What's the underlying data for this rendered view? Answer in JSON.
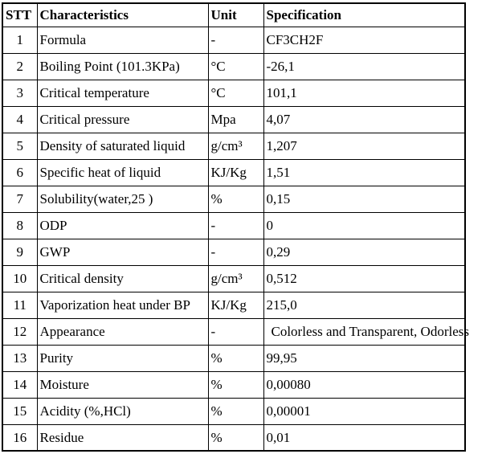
{
  "table": {
    "headers": {
      "stt": "STT",
      "characteristics": "Characteristics",
      "unit": "Unit",
      "specification": "Specification"
    },
    "rows": [
      {
        "stt": "1",
        "characteristics": "Formula",
        "unit": "-",
        "specification": "CF3CH2F"
      },
      {
        "stt": "2",
        "characteristics": "Boiling Point (101.3KPa)",
        "unit": "°C",
        "specification": "-26,1"
      },
      {
        "stt": "3",
        "characteristics": "Critical temperature",
        "unit": "°C",
        "specification": "101,1"
      },
      {
        "stt": "4",
        "characteristics": "Critical pressure",
        "unit": "Mpa",
        "specification": "4,07"
      },
      {
        "stt": "5",
        "characteristics": "Density of saturated liquid",
        "unit": "g/cm³",
        "specification": "1,207"
      },
      {
        "stt": "6",
        "characteristics": "Specific heat of liquid",
        "unit": "KJ/Kg",
        "specification": "1,51"
      },
      {
        "stt": "7",
        "characteristics": "Solubility(water,25 )",
        "unit": "%",
        "specification": "0,15"
      },
      {
        "stt": "8",
        "characteristics": "ODP",
        "unit": "-",
        "specification": "0"
      },
      {
        "stt": "9",
        "characteristics": "GWP",
        "unit": "-",
        "specification": "0,29"
      },
      {
        "stt": "10",
        "characteristics": "Critical density",
        "unit": "g/cm³",
        "specification": "0,512"
      },
      {
        "stt": "11",
        "characteristics": "Vaporization heat under BP",
        "unit": "KJ/Kg",
        "specification": "215,0"
      },
      {
        "stt": "12",
        "characteristics": "Appearance",
        "unit": "-",
        "specification": "Colorless and Transparent, Odorless"
      },
      {
        "stt": "13",
        "characteristics": "Purity",
        "unit": "%",
        "specification": "99,95"
      },
      {
        "stt": "14",
        "characteristics": "Moisture",
        "unit": "%",
        "specification": "0,00080"
      },
      {
        "stt": "15",
        "characteristics": "Acidity (%,HCl)",
        "unit": "%",
        "specification": "0,00001"
      },
      {
        "stt": "16",
        "characteristics": "Residue",
        "unit": "%",
        "specification": "0,01"
      }
    ]
  },
  "colors": {
    "text": "#000000",
    "border": "#000000",
    "background": "#ffffff"
  }
}
